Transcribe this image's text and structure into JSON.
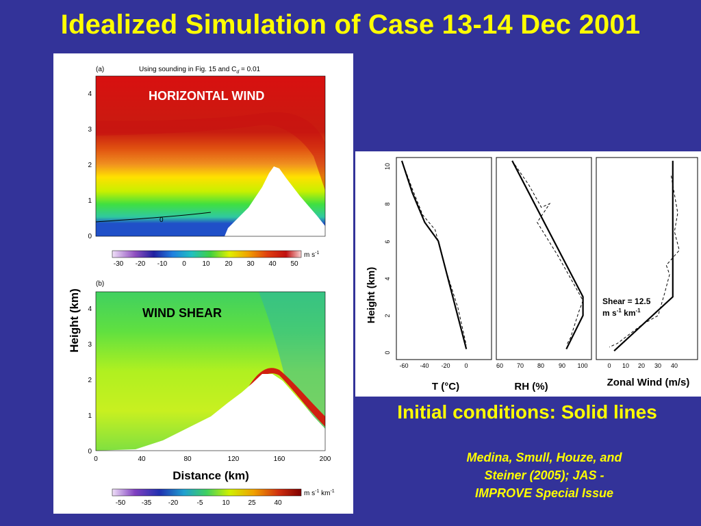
{
  "slide_title": "Idealized Simulation of Case 13-14 Dec 2001",
  "left_figure": {
    "panel_a": {
      "letter": "(a)",
      "caption_prefix": "Using sounding in Fig. 15 and C",
      "caption_sub": "d",
      "caption_suffix": " = 0.01",
      "overlay_label": "HORIZONTAL WIND",
      "contour_label": "0",
      "y_ticks": [
        "0",
        "1",
        "2",
        "3",
        "4"
      ],
      "colorbar_ticks": [
        "-30",
        "-20",
        "-10",
        "0",
        "10",
        "20",
        "30",
        "40",
        "50"
      ],
      "colorbar_unit_base": "m s",
      "colorbar_unit_exp": "-1"
    },
    "panel_b": {
      "letter": "(b)",
      "overlay_label": "WIND SHEAR",
      "y_ticks": [
        "0",
        "1",
        "2",
        "3",
        "4"
      ],
      "x_ticks": [
        "0",
        "40",
        "80",
        "120",
        "160",
        "200"
      ],
      "colorbar_ticks": [
        "-50",
        "-35",
        "-20",
        "-5",
        "10",
        "25",
        "40"
      ],
      "colorbar_unit": "m s",
      "colorbar_unit_exp1": "-1",
      "colorbar_unit_km": " km",
      "colorbar_unit_exp2": "-1"
    },
    "ylabel": "Height (km)",
    "xlabel": "Distance (km)"
  },
  "right_figure": {
    "ylabel": "Height (km)",
    "y_ticks": [
      "0",
      "2",
      "4",
      "6",
      "8",
      "10"
    ],
    "temperature": {
      "xlabel": "T (°C)",
      "x_ticks": [
        "-60",
        "-40",
        "-20",
        "0"
      ],
      "solid": [
        [
          -62,
          10.3
        ],
        [
          -52,
          8.6
        ],
        [
          -40,
          7.0
        ],
        [
          -27,
          6.0
        ],
        [
          0,
          0.2
        ]
      ],
      "dashed": [
        [
          -62,
          10.3
        ],
        [
          -52,
          8.8
        ],
        [
          -42,
          7.4
        ],
        [
          -30,
          6.6
        ],
        [
          -20,
          4.5
        ],
        [
          -8,
          2.4
        ],
        [
          0,
          0.4
        ]
      ]
    },
    "relative_humidity": {
      "xlabel": "RH (%)",
      "x_ticks": [
        "60",
        "70",
        "80",
        "90",
        "100"
      ],
      "solid": [
        [
          66,
          10.3
        ],
        [
          100,
          3.0
        ],
        [
          100,
          2.0
        ],
        [
          92,
          0.2
        ]
      ],
      "dashed": [
        [
          66,
          10.3
        ],
        [
          74,
          9.0
        ],
        [
          80,
          7.8
        ],
        [
          84,
          8.0
        ],
        [
          78,
          7.0
        ],
        [
          88,
          5.2
        ],
        [
          94,
          4.0
        ],
        [
          100,
          2.8
        ],
        [
          98,
          2.2
        ],
        [
          94,
          0.8
        ],
        [
          92,
          0.4
        ]
      ]
    },
    "zonal_wind": {
      "xlabel": "Zonal Wind (m/s)",
      "x_ticks": [
        "0",
        "10",
        "20",
        "30",
        "40"
      ],
      "shear_line1": "Shear = 12.5",
      "shear_line2_base": "m s",
      "shear_line2_exp1": "-1",
      "shear_line2_km": " km",
      "shear_line2_exp2": "-1",
      "solid": [
        [
          39,
          10.3
        ],
        [
          39,
          3.0
        ],
        [
          3,
          0.1
        ]
      ],
      "dashed": [
        [
          38,
          9.5
        ],
        [
          40,
          8.5
        ],
        [
          42,
          7.5
        ],
        [
          40,
          6.5
        ],
        [
          43,
          5.5
        ],
        [
          35,
          4.7
        ],
        [
          37,
          4.2
        ],
        [
          34,
          3.2
        ],
        [
          30,
          2.0
        ],
        [
          20,
          1.5
        ],
        [
          5,
          0.5
        ],
        [
          0,
          0.3
        ]
      ]
    }
  },
  "caption": "Initial conditions: Solid lines",
  "citation_line1": "Medina, Smull, Houze, and",
  "citation_line2": "Steiner (2005); JAS -",
  "citation_line3": "IMPROVE Special Issue"
}
